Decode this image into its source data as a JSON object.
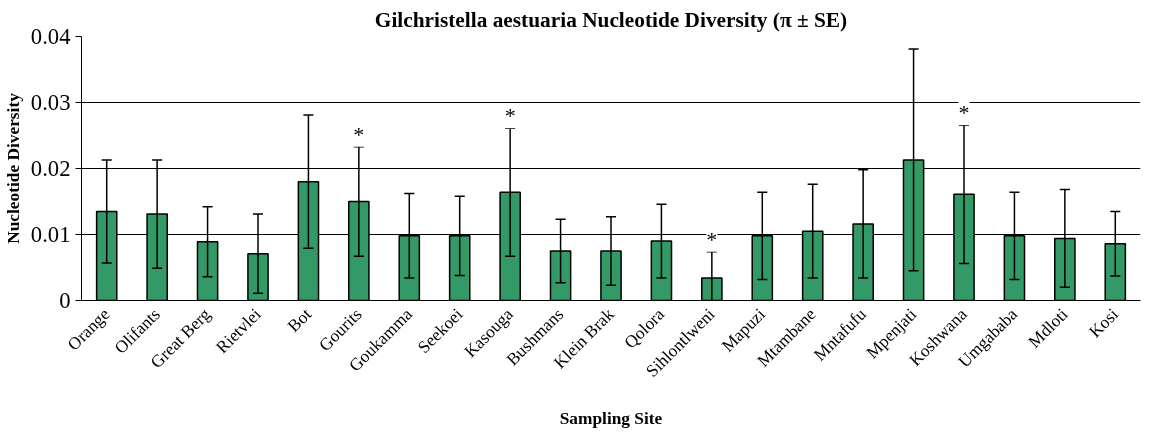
{
  "chart_data": {
    "type": "bar",
    "title": "Gilchristella aestuaria Nucleotide Diversity (π ± SE)",
    "xlabel": "Sampling Site",
    "ylabel": "Nucleotide Diversity",
    "categories": [
      "Orange",
      "Olifants",
      "Great Berg",
      "Rietvlei",
      "Bot",
      "Gourits",
      "Goukamma",
      "Seekoei",
      "Kasouga",
      "Bushmans",
      "Klein Brak",
      "Qolora",
      "Sihlontlweni",
      "Mapuzi",
      "Mtambane",
      "Mntafufu",
      "Mpenjati",
      "Koshwana",
      "Umgababa",
      "Mdloti",
      "Kosi"
    ],
    "values": [
      0.0135,
      0.0131,
      0.0089,
      0.0071,
      0.018,
      0.015,
      0.0098,
      0.0098,
      0.0164,
      0.0075,
      0.0075,
      0.009,
      0.0034,
      0.0098,
      0.0105,
      0.0116,
      0.0213,
      0.0161,
      0.0098,
      0.0094,
      0.0086
    ],
    "errors": [
      0.0078,
      0.0082,
      0.0053,
      0.006,
      0.0101,
      0.0083,
      0.0064,
      0.006,
      0.0097,
      0.0048,
      0.0052,
      0.0056,
      0.004,
      0.0066,
      0.0071,
      0.0082,
      0.0168,
      0.0105,
      0.0066,
      0.0074,
      0.0049
    ],
    "color": "#339966",
    "ylim": [
      0,
      0.04
    ],
    "yticks": [
      0,
      0.01,
      0.02,
      0.03,
      0.04
    ],
    "grid": "y",
    "value_labels": [
      null,
      null,
      null,
      null,
      null,
      "*",
      null,
      null,
      "*",
      null,
      null,
      null,
      "*",
      null,
      null,
      null,
      null,
      "*",
      null,
      null,
      null
    ]
  }
}
